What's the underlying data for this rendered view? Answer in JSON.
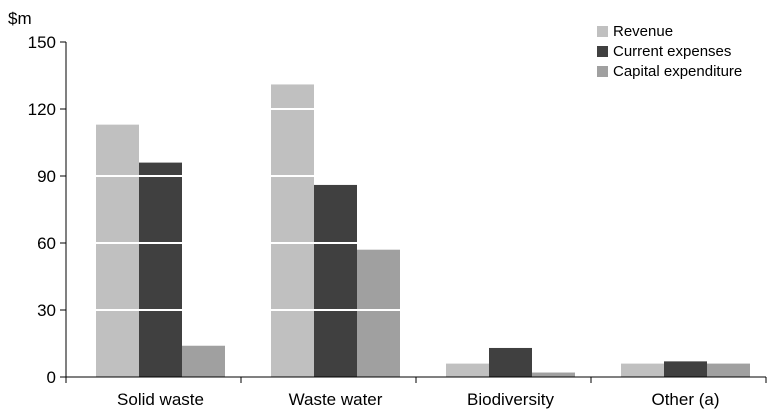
{
  "chart_data": {
    "type": "bar",
    "title": "",
    "xlabel": "",
    "ylabel": "$m",
    "ylim": [
      0,
      150
    ],
    "yticks": [
      0,
      30,
      60,
      90,
      120,
      150
    ],
    "categories": [
      "Solid waste",
      "Waste water",
      "Biodiversity",
      "Other (a)"
    ],
    "series": [
      {
        "name": "Revenue",
        "color": "#c0c0c0",
        "values": [
          113,
          131,
          6,
          6
        ]
      },
      {
        "name": "Current expenses",
        "color": "#404040",
        "values": [
          96,
          86,
          13,
          7
        ]
      },
      {
        "name": "Capital expenditure",
        "color": "#a0a0a0",
        "values": [
          14,
          57,
          2,
          6
        ]
      }
    ],
    "grid": "white lines at tick values, drawn over bars",
    "legend_position": "top-right"
  }
}
